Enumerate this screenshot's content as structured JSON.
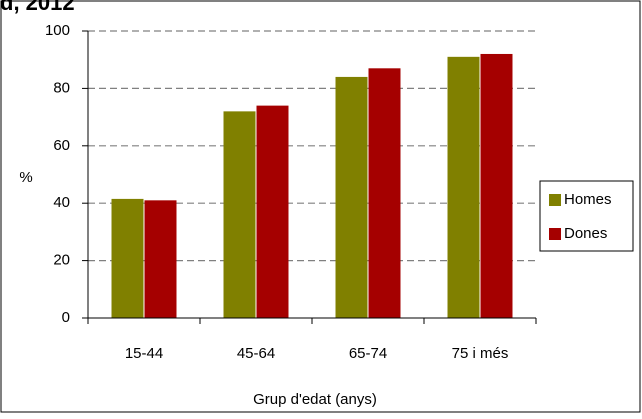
{
  "chart_data": {
    "type": "bar",
    "title": "d, 2012",
    "ylabel": "%",
    "xlabel": "Grup d'edat (anys)",
    "categories": [
      "15-44",
      "45-64",
      "65-74",
      "75 i més"
    ],
    "ylim": [
      0,
      100
    ],
    "yticks": [
      0,
      20,
      40,
      60,
      80,
      100
    ],
    "grid": true,
    "legend_position": "right",
    "series": [
      {
        "name": "Homes",
        "color": "#808000",
        "values": [
          41.5,
          72,
          84,
          91
        ]
      },
      {
        "name": "Dones",
        "color": "#A50000",
        "values": [
          41,
          74,
          87,
          92
        ]
      }
    ]
  }
}
